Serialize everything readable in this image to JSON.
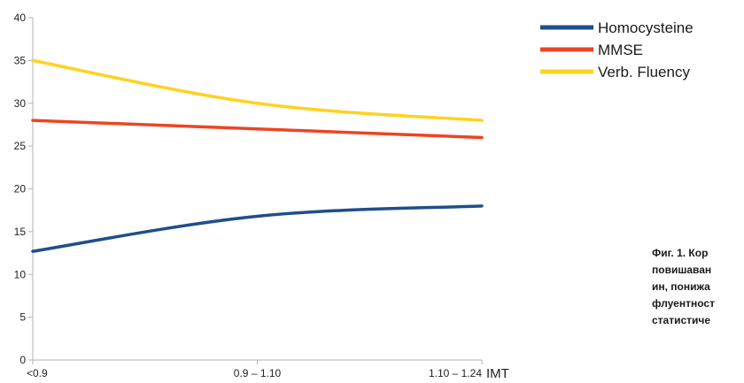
{
  "chart_data": {
    "type": "line",
    "categories": [
      "<0.9",
      "0.9 – 1.10",
      "1.10 – 1.24"
    ],
    "xlabel": "IMT",
    "ylabel": "",
    "ylim": [
      0,
      40
    ],
    "yticks": [
      0,
      5,
      10,
      15,
      20,
      25,
      30,
      35,
      40
    ],
    "grid": false,
    "legend_position": "top-right",
    "series": [
      {
        "name": "Homocysteine",
        "color": "#1f4e8c",
        "values": [
          12.7,
          16.8,
          18.0
        ]
      },
      {
        "name": "MMSE",
        "color": "#ee4422",
        "values": [
          28.0,
          27.0,
          26.0
        ]
      },
      {
        "name": "Verb. Fluency",
        "color": "#ffd21f",
        "values": [
          35.0,
          30.0,
          28.0
        ]
      }
    ]
  },
  "caption": {
    "lines": [
      "Фиг. 1. Кор",
      "повишаван",
      "ин, понижа",
      "флуентност",
      "статистиче"
    ]
  }
}
